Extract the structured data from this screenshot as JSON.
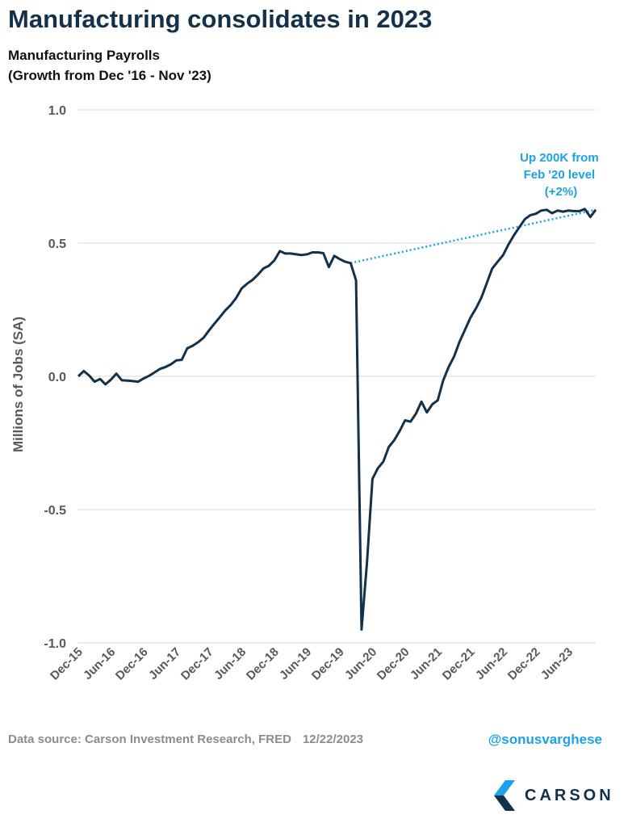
{
  "header": {
    "title": "Manufacturing consolidates in 2023",
    "subtitle_line1": "Manufacturing Payrolls",
    "subtitle_line2": "(Growth from Dec '16 - Nov '23)"
  },
  "footer": {
    "source": "Data source: Carson Investment Research, FRED",
    "date": "12/22/2023",
    "handle": "@sonusvarghese",
    "logo_text": "CARSON"
  },
  "colors": {
    "series": "#13314a",
    "annotation": "#1aa3e8",
    "grid": "#d9d9d9",
    "axis_text": "#595959"
  },
  "chart_data": {
    "type": "line",
    "ylabel": "Millions of Jobs (SA)",
    "ylim": [
      -1.0,
      1.0
    ],
    "yticks": [
      1.0,
      0.5,
      0.0,
      -0.5,
      -1.0
    ],
    "ytick_labels": [
      "1.0",
      "0.5",
      "0.0",
      "-0.5",
      "-1.0"
    ],
    "xtick_labels": [
      "Dec-15",
      "Jun-16",
      "Dec-16",
      "Jun-17",
      "Dec-17",
      "Jun-18",
      "Dec-18",
      "Jun-19",
      "Dec-19",
      "Jun-20",
      "Dec-20",
      "Jun-21",
      "Dec-21",
      "Jun-22",
      "Dec-22",
      "Jun-23"
    ],
    "grid": "horizontal",
    "legend": "none",
    "x_start": "Dec-15",
    "x_end": "Nov-23",
    "series": [
      {
        "values": [
          0.0,
          0.02,
          0.003,
          -0.02,
          -0.01,
          -0.03,
          -0.012,
          0.01,
          -0.015,
          -0.016,
          -0.018,
          -0.02,
          -0.008,
          0.002,
          0.015,
          0.028,
          0.035,
          0.045,
          0.06,
          0.062,
          0.105,
          0.115,
          0.128,
          0.145,
          0.172,
          0.198,
          0.222,
          0.248,
          0.268,
          0.295,
          0.33,
          0.348,
          0.362,
          0.382,
          0.405,
          0.415,
          0.435,
          0.47,
          0.461,
          0.461,
          0.458,
          0.455,
          0.458,
          0.465,
          0.465,
          0.462,
          0.41,
          0.452,
          0.44,
          0.43,
          0.425,
          0.36,
          -0.95,
          -0.7,
          -0.385,
          -0.345,
          -0.32,
          -0.265,
          -0.24,
          -0.205,
          -0.165,
          -0.17,
          -0.14,
          -0.095,
          -0.135,
          -0.105,
          -0.09,
          -0.015,
          0.035,
          0.075,
          0.13,
          0.175,
          0.22,
          0.255,
          0.295,
          0.35,
          0.405,
          0.43,
          0.455,
          0.495,
          0.53,
          0.56,
          0.59,
          0.605,
          0.61,
          0.622,
          0.625,
          0.612,
          0.622,
          0.618,
          0.622,
          0.62,
          0.62,
          0.628,
          0.598,
          0.625
        ]
      }
    ],
    "trend_line": {
      "from": "Feb-20",
      "from_value": 0.425,
      "to": "Nov-23",
      "to_value": 0.625
    },
    "annotation": {
      "lines": [
        "Up 200K from",
        "Feb '20 level",
        "(+2%)"
      ]
    }
  }
}
